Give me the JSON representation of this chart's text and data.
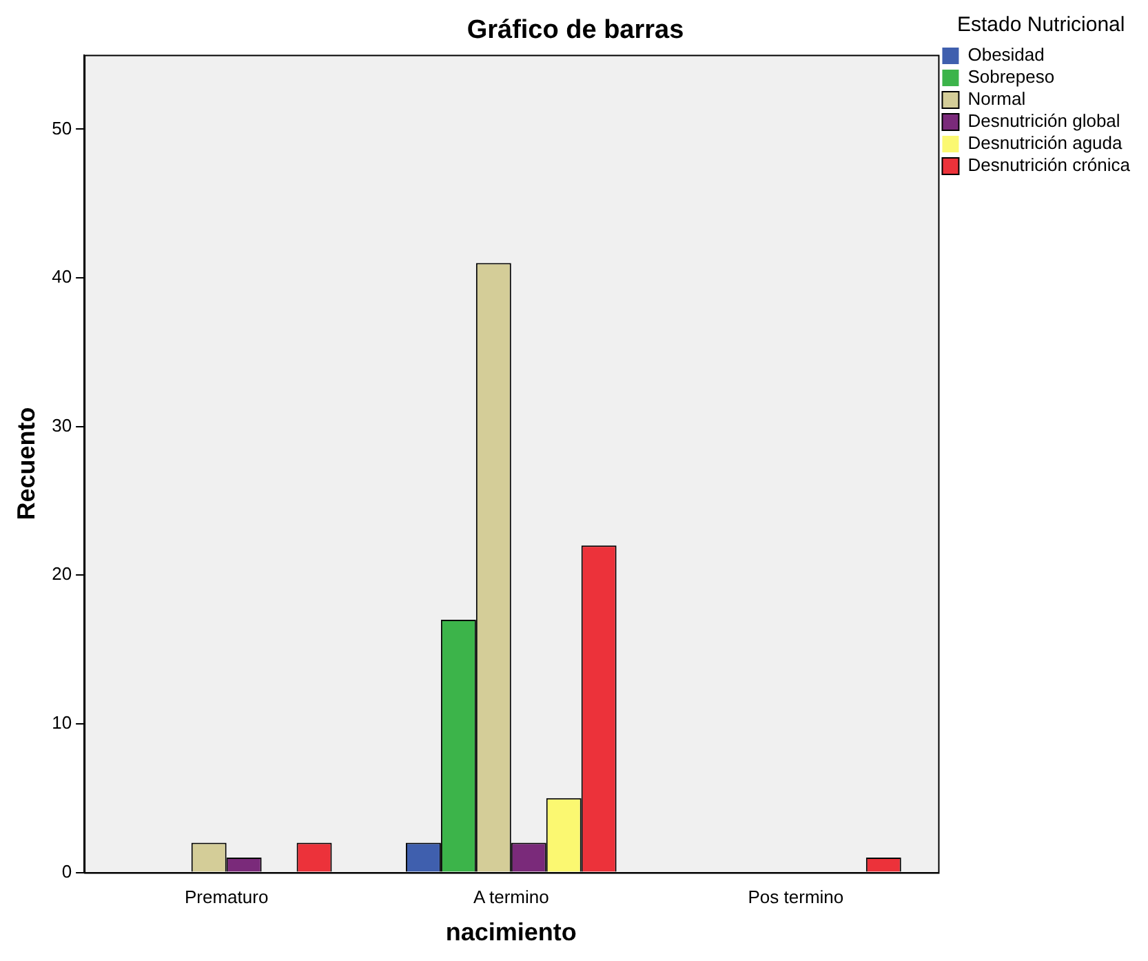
{
  "chart_data": {
    "type": "bar",
    "title": "Gráfico de barras",
    "xlabel": "nacimiento",
    "ylabel": "Recuento",
    "legend_title": "Estado Nutricional",
    "categories": [
      "Prematuro",
      "A termino",
      "Pos termino"
    ],
    "series": [
      {
        "name": "Obesidad",
        "color": "#3f5fae",
        "values": [
          0,
          2,
          0
        ]
      },
      {
        "name": "Sobrepeso",
        "color": "#3cb44a",
        "values": [
          0,
          17,
          0
        ]
      },
      {
        "name": "Normal",
        "color": "#d4cd98",
        "values": [
          2,
          41,
          0
        ]
      },
      {
        "name": "Desnutrición global",
        "color": "#7a2a7a",
        "values": [
          1,
          2,
          0
        ]
      },
      {
        "name": "Desnutrición aguda",
        "color": "#fbf871",
        "values": [
          0,
          5,
          0
        ]
      },
      {
        "name": "Desnutrición crónica",
        "color": "#ec323a",
        "values": [
          2,
          22,
          1
        ]
      }
    ],
    "ylim": [
      0,
      55
    ],
    "yticks": [
      0,
      10,
      20,
      30,
      40,
      50
    ],
    "grid": false,
    "legend": "top right"
  }
}
